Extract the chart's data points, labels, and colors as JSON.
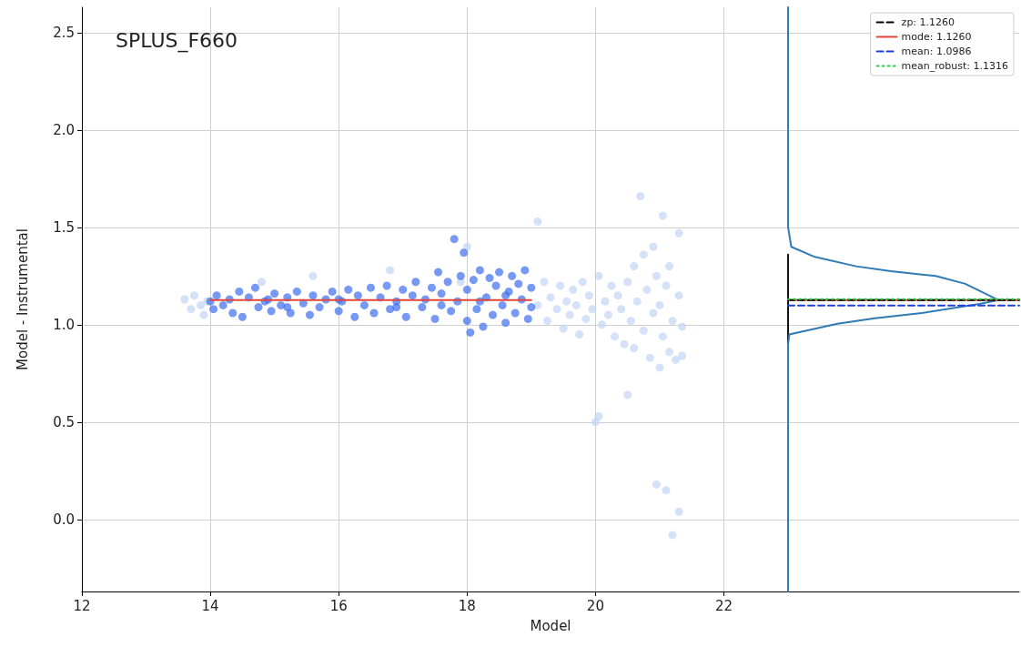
{
  "chart_data": {
    "type": "scatter",
    "title": "SPLUS_F660",
    "xlabel": "Model",
    "ylabel": "Model - Instrumental",
    "xlim": [
      12,
      26.6
    ],
    "ylim": [
      -0.37,
      2.63
    ],
    "xticks": [
      12,
      14,
      16,
      18,
      20,
      22
    ],
    "yticks": [
      {
        "value": 0,
        "label": "0.0"
      },
      0.5,
      {
        "value": 1,
        "label": "1.0"
      },
      1.5,
      {
        "value": 2,
        "label": "2.0"
      },
      2.5
    ],
    "grid": true,
    "legend": "top right",
    "series": [
      {
        "marker": "circle",
        "color": "#c2d4f7",
        "x": [
          13.6,
          13.7,
          13.75,
          13.85,
          13.9,
          13.95,
          14.8,
          15.6,
          16.8,
          17.9,
          18.0,
          19.1,
          19.1,
          19.2,
          19.25,
          19.3,
          19.4,
          19.45,
          19.5,
          19.55,
          19.6,
          19.65,
          19.7,
          19.75,
          19.8,
          19.85,
          19.9,
          19.95,
          20.0,
          20.05,
          20.05,
          20.1,
          20.15,
          20.2,
          20.25,
          20.3,
          20.35,
          20.4,
          20.45,
          20.5,
          20.5,
          20.55,
          20.6,
          20.6,
          20.65,
          20.7,
          20.75,
          20.75,
          20.8,
          20.85,
          20.9,
          20.9,
          20.95,
          20.95,
          21.0,
          21.0,
          21.05,
          21.05,
          21.1,
          21.1,
          21.15,
          21.15,
          21.2,
          21.2,
          21.25,
          21.3,
          21.3,
          21.3,
          21.35,
          21.35
        ],
        "values": [
          1.13,
          1.08,
          1.15,
          1.1,
          1.05,
          1.12,
          1.22,
          1.25,
          1.28,
          1.22,
          1.4,
          1.53,
          1.1,
          1.22,
          1.02,
          1.14,
          1.08,
          1.2,
          0.98,
          1.12,
          1.05,
          1.18,
          1.1,
          0.95,
          1.22,
          1.03,
          1.15,
          1.08,
          0.5,
          0.53,
          1.25,
          1.0,
          1.12,
          1.05,
          1.2,
          0.94,
          1.15,
          1.08,
          0.9,
          0.64,
          1.22,
          1.02,
          0.88,
          1.3,
          1.12,
          1.66,
          1.36,
          0.97,
          1.18,
          0.83,
          1.06,
          1.4,
          0.18,
          1.25,
          0.78,
          1.1,
          0.94,
          1.56,
          1.2,
          0.15,
          1.3,
          0.86,
          -0.08,
          1.02,
          0.82,
          1.47,
          0.04,
          1.15,
          0.99,
          0.84
        ]
      },
      {
        "marker": "circle",
        "color": "#3d6ef0",
        "x": [
          14.0,
          14.05,
          14.1,
          14.2,
          14.3,
          14.35,
          14.45,
          14.5,
          14.6,
          14.7,
          14.75,
          14.85,
          14.95,
          15.0,
          15.1,
          15.2,
          15.25,
          15.35,
          15.45,
          15.55,
          15.6,
          15.7,
          15.8,
          15.9,
          16.0,
          16.05,
          16.15,
          16.25,
          16.3,
          16.4,
          16.5,
          16.55,
          16.65,
          16.75,
          16.8,
          16.9,
          17.0,
          17.05,
          17.15,
          17.2,
          17.3,
          17.35,
          17.45,
          17.5,
          17.55,
          17.6,
          17.7,
          17.75,
          17.8,
          17.85,
          17.9,
          17.95,
          18.0,
          18.0,
          18.05,
          18.1,
          18.15,
          18.2,
          18.25,
          18.3,
          18.35,
          18.4,
          18.45,
          18.5,
          18.55,
          18.6,
          18.65,
          18.7,
          18.75,
          18.8,
          18.85,
          18.9,
          18.95,
          19.0,
          19.0,
          16.0,
          15.2,
          17.6,
          18.2,
          18.6,
          16.9,
          14.9
        ],
        "values": [
          1.12,
          1.08,
          1.15,
          1.1,
          1.13,
          1.06,
          1.17,
          1.04,
          1.14,
          1.19,
          1.09,
          1.12,
          1.07,
          1.16,
          1.1,
          1.14,
          1.06,
          1.17,
          1.11,
          1.05,
          1.15,
          1.09,
          1.13,
          1.17,
          1.07,
          1.12,
          1.18,
          1.04,
          1.15,
          1.1,
          1.19,
          1.06,
          1.14,
          1.2,
          1.08,
          1.12,
          1.18,
          1.04,
          1.15,
          1.22,
          1.09,
          1.13,
          1.19,
          1.03,
          1.27,
          1.16,
          1.22,
          1.07,
          1.44,
          1.12,
          1.25,
          1.37,
          1.02,
          1.18,
          0.96,
          1.23,
          1.08,
          1.28,
          0.99,
          1.14,
          1.24,
          1.05,
          1.2,
          1.27,
          1.1,
          1.01,
          1.17,
          1.25,
          1.06,
          1.21,
          1.13,
          1.28,
          1.03,
          1.19,
          1.09,
          1.13,
          1.09,
          1.1,
          1.12,
          1.15,
          1.09,
          1.13
        ]
      },
      {
        "type": "line",
        "marker": "none",
        "line_style": "solid",
        "color": "#e0463a",
        "x": [
          14,
          19
        ],
        "values": [
          1.126,
          1.126
        ]
      },
      {
        "type": "line",
        "marker": "none",
        "line_style": "solid",
        "color": "#111111",
        "x": [
          23,
          23
        ],
        "values": [
          0.9,
          1.36
        ]
      },
      {
        "type": "line",
        "marker": "none",
        "line_style": "solid",
        "color": "#2f7bb6",
        "x": [
          23,
          23,
          23.02,
          23.77,
          24.35,
          25.08,
          25.98,
          26.28,
          25.76,
          25.3,
          24.6,
          24.06,
          23.4,
          23.05,
          23,
          23
        ],
        "values": [
          -0.37,
          0.9,
          0.95,
          1.005,
          1.033,
          1.06,
          1.107,
          1.126,
          1.21,
          1.25,
          1.275,
          1.3,
          1.35,
          1.4,
          1.5,
          2.63
        ]
      },
      {
        "type": "line",
        "marker": "none",
        "line_style": "dashed",
        "name": "zp: 1.1260",
        "color": "#000000",
        "x": [
          23,
          26.6
        ],
        "values": [
          1.126,
          1.126
        ]
      },
      {
        "type": "line",
        "marker": "none",
        "line_style": "solid",
        "name": "mode: 1.1260",
        "color": "#e0463a",
        "x": [
          23,
          26.6
        ],
        "values": [
          1.126,
          1.126
        ]
      },
      {
        "type": "line",
        "marker": "none",
        "line_style": "dashed",
        "name": "mean: 1.0986",
        "color": "#1f3fe0",
        "x": [
          23,
          26.6
        ],
        "values": [
          1.0986,
          1.0986
        ]
      },
      {
        "type": "line",
        "marker": "none",
        "line_style": "dotted",
        "name": "mean_robust: 1.1316",
        "color": "#2ecc40",
        "x": [
          23,
          26.6
        ],
        "values": [
          1.1316,
          1.1316
        ]
      }
    ]
  }
}
